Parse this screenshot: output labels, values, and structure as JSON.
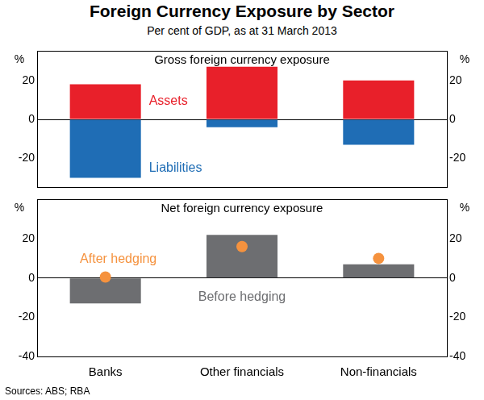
{
  "title": "Foreign Currency Exposure by Sector",
  "subtitle": "Per cent of GDP, as at 31 March 2013",
  "source": "Sources: ABS; RBA",
  "chart_data": [
    {
      "type": "bar",
      "title": "Gross foreign currency exposure",
      "y_label": "%",
      "categories": [
        "Banks",
        "Other financials",
        "Non-financials"
      ],
      "series": [
        {
          "name": "Assets",
          "color": "#e8202a",
          "values": [
            18,
            27,
            20
          ]
        },
        {
          "name": "Liabilities",
          "color": "#1f6db5",
          "values": [
            -30,
            -4,
            -13
          ]
        }
      ],
      "stacked": true,
      "ylim": [
        -35,
        35
      ],
      "yticks": [
        -20,
        0,
        20
      ],
      "grid": false,
      "tick_labels": "y"
    },
    {
      "type": "bar",
      "title": "Net foreign currency exposure",
      "y_label": "%",
      "categories": [
        "Banks",
        "Other financials",
        "Non-financials"
      ],
      "series": [
        {
          "name": "Before hedging",
          "color": "#6d6e71",
          "values": [
            -13,
            22,
            7
          ]
        },
        {
          "name": "After hedging",
          "type": "scatter",
          "marker": "circle",
          "color": "#f5923e",
          "values": [
            0.5,
            16,
            10
          ]
        }
      ],
      "stacked": false,
      "ylim": [
        -40,
        40
      ],
      "yticks": [
        -40,
        -20,
        0,
        20
      ],
      "grid": false
    }
  ]
}
